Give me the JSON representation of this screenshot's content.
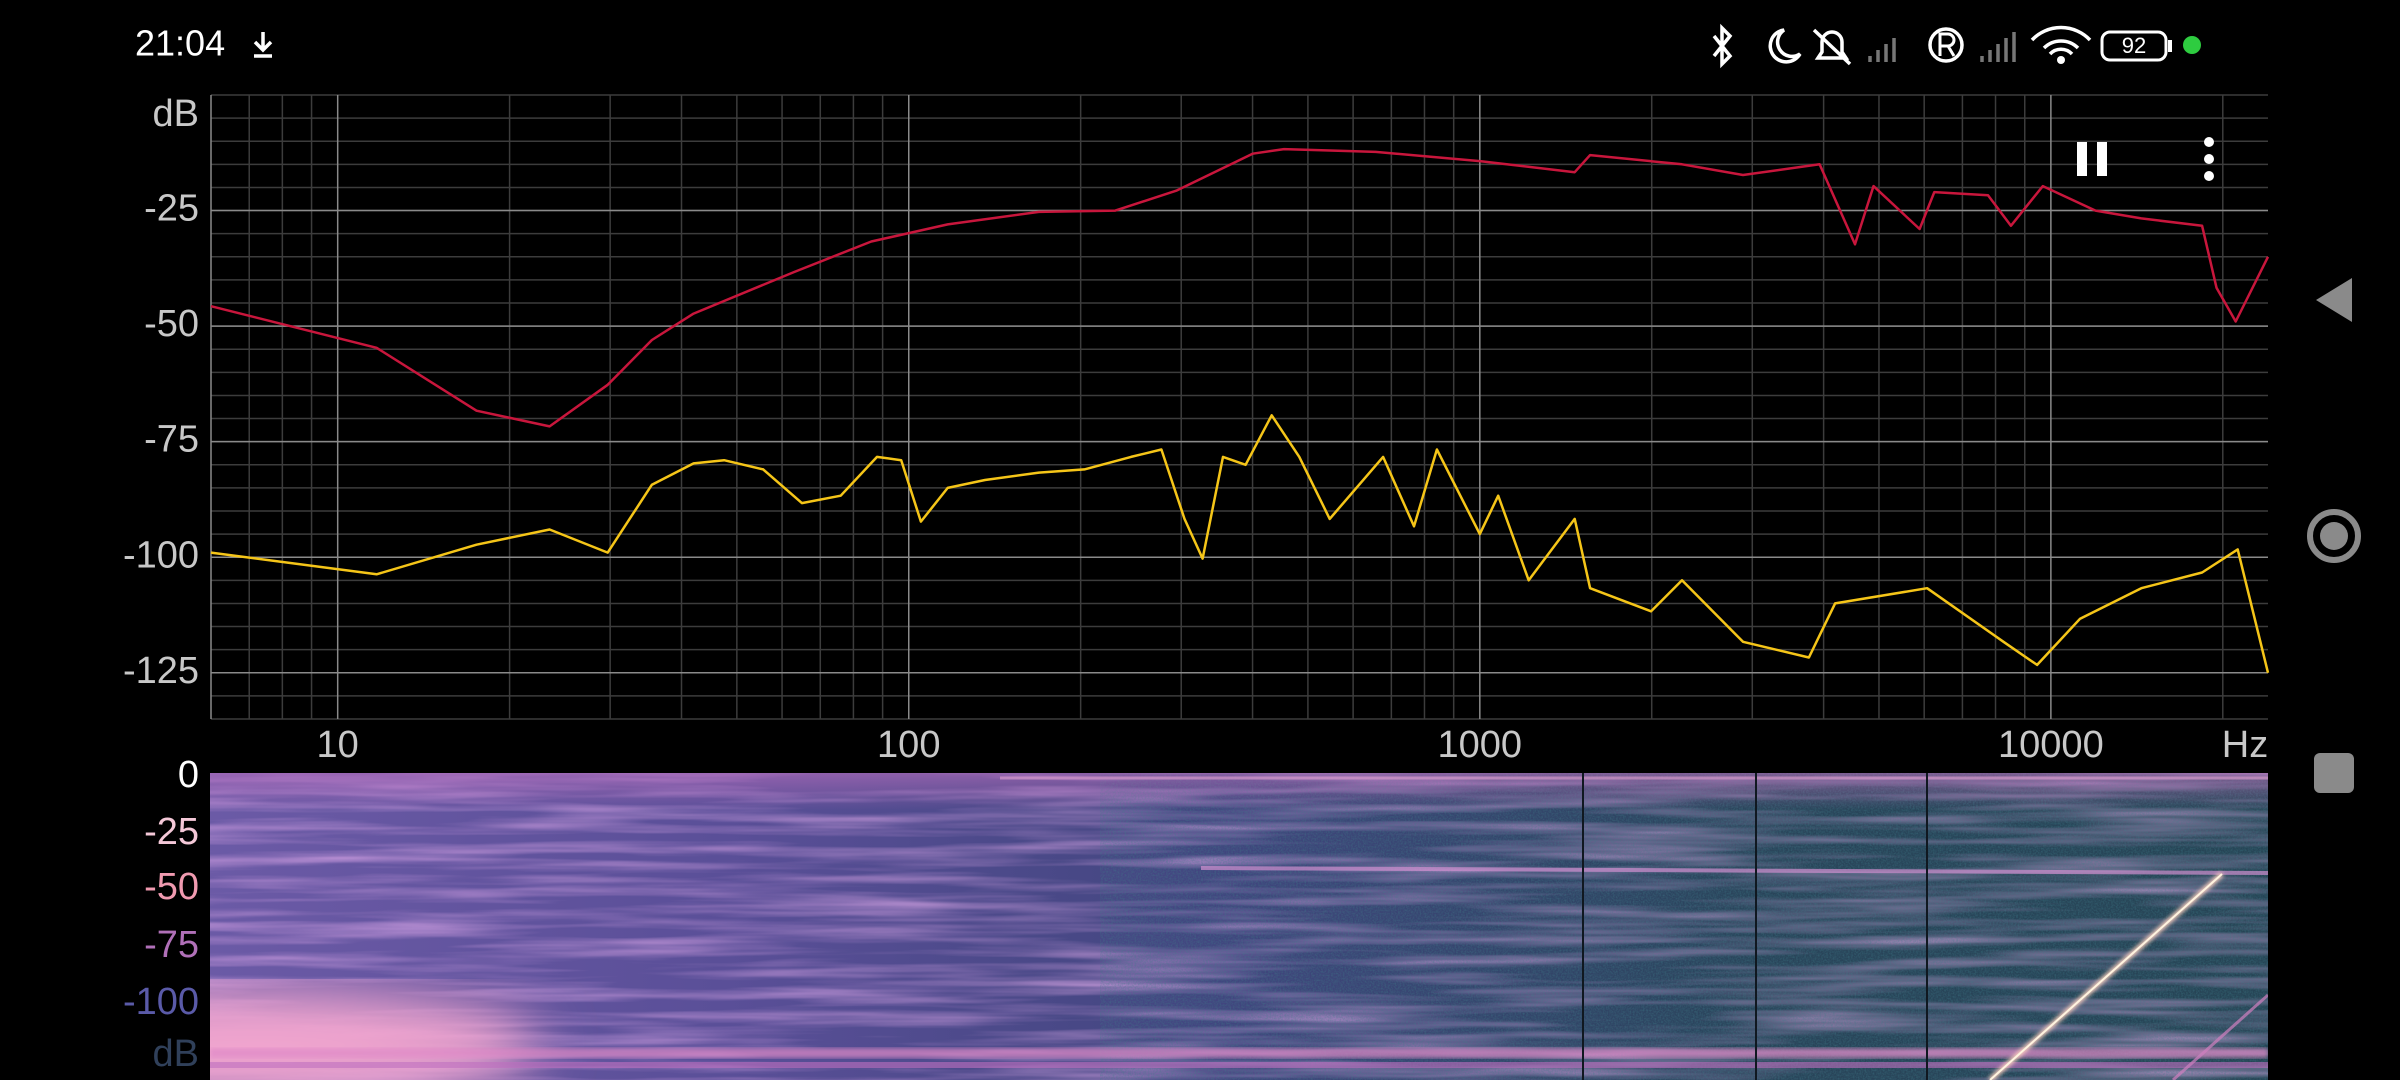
{
  "status_bar": {
    "time": "21:04",
    "battery": "92"
  },
  "chart_data": {
    "type": "line",
    "x_label": "Hz",
    "y_label": "dB",
    "x_log": true,
    "grid": true,
    "xlim": [
      6,
      24000
    ],
    "xticks": [
      10,
      100,
      1000,
      10000
    ],
    "ylim": [
      -135,
      0
    ],
    "yticks": [
      -125,
      -100,
      -75,
      -50,
      -25
    ],
    "series": [
      {
        "color": "#c8163c",
        "x": [
          6,
          11.7,
          17.5,
          23.5,
          29.7,
          35.5,
          42,
          63,
          86,
          117,
          169,
          230,
          294,
          400,
          454,
          657,
          1000,
          1466,
          1560,
          2260,
          2890,
          3935,
          4540,
          4890,
          5890,
          6250,
          7760,
          8510,
          9680,
          11970,
          14400,
          18400,
          19500,
          21070,
          24000
        ],
        "values": [
          -45.7,
          -54.7,
          -68.3,
          -71.7,
          -62.7,
          -53,
          -47.3,
          -38.3,
          -31.7,
          -28,
          -25.3,
          -25,
          -20.7,
          -12.7,
          -11.7,
          -12.3,
          -14.3,
          -16.7,
          -13,
          -15,
          -17.3,
          -15,
          -32.3,
          -19.7,
          -29,
          -21,
          -21.7,
          -28.3,
          -19.7,
          -25,
          -26.7,
          -28.3,
          -41.7,
          -49,
          -35
        ]
      },
      {
        "color": "#f5c518",
        "x": [
          6,
          11.7,
          17.5,
          23.5,
          29.7,
          35.5,
          42,
          47.5,
          55.6,
          65,
          76,
          88,
          97,
          105,
          117,
          136,
          169,
          203,
          245,
          277,
          304,
          327,
          355,
          389,
          432,
          483,
          546,
          677,
          767,
          841,
          1000,
          1077,
          1218,
          1466,
          1560,
          1995,
          2260,
          2890,
          3770,
          4190,
          6070,
          8260,
          9460,
          11250,
          14400,
          18400,
          21240,
          24000
        ],
        "values": [
          -99,
          -103.7,
          -97.3,
          -94,
          -99,
          -84.3,
          -79.7,
          -79,
          -81,
          -88.3,
          -86.7,
          -78.3,
          -79,
          -92.3,
          -85,
          -83.3,
          -81.7,
          -81,
          -78.3,
          -76.7,
          -91.7,
          -100.3,
          -78.3,
          -80,
          -69.3,
          -78.3,
          -91.7,
          -78.3,
          -93.3,
          -76.7,
          -95,
          -86.7,
          -105,
          -91.7,
          -106.7,
          -111.7,
          -105,
          -118.3,
          -121.7,
          -110,
          -106.7,
          -118.3,
          -123.3,
          -113.3,
          -106.7,
          -103.3,
          -98.3,
          -125
        ]
      }
    ]
  },
  "spectrogram": {
    "scale_labels": [
      "0",
      "-25",
      "-50",
      "-75",
      "-100",
      "dB"
    ]
  }
}
